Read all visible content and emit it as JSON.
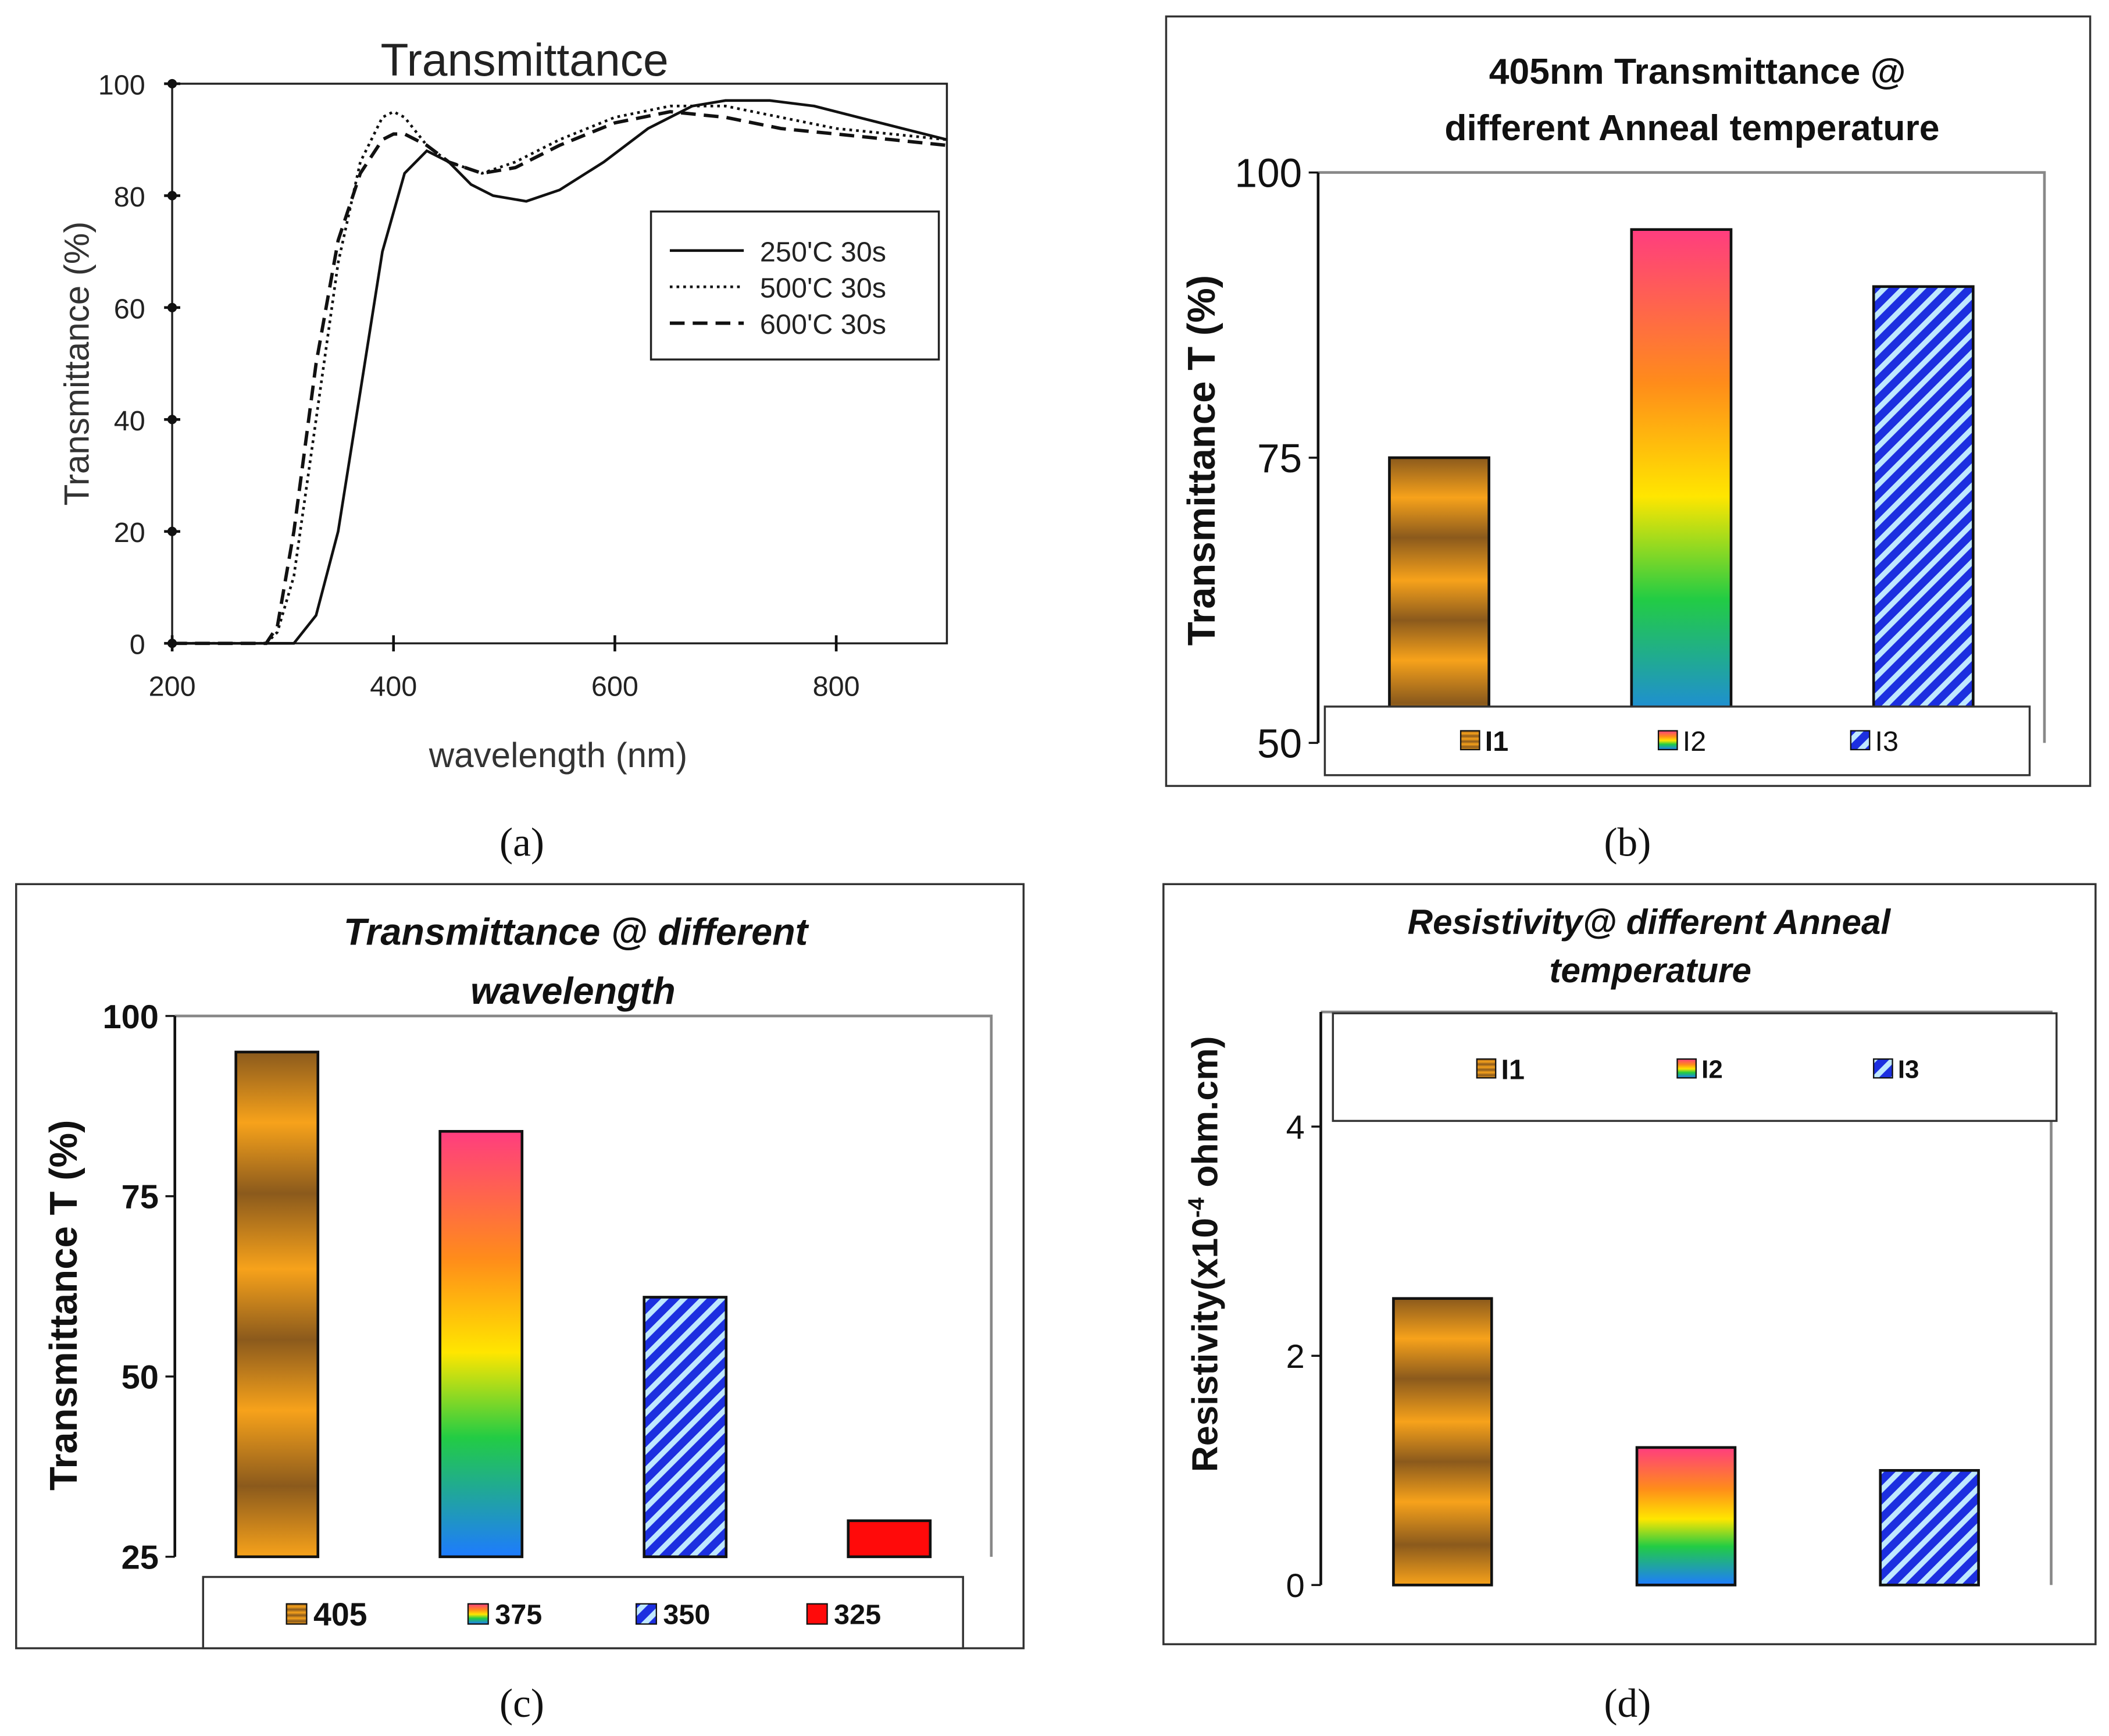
{
  "panel_labels": [
    "(a)",
    "(b)",
    "(c)",
    "(d)"
  ],
  "colors": {
    "orange": "#f7a21b",
    "orange_dark": "#8b5a1c",
    "rainbow": [
      "#ff3d7f",
      "#ff8c1a",
      "#ffe600",
      "#22cc44",
      "#1e7bff"
    ],
    "stripe_blue": "#1c2fe0",
    "stripe_light": "#bfe8ff",
    "red": "#ff0a0a"
  },
  "chart_data": [
    {
      "type": "line",
      "title": "Transmittance",
      "xlabel": "wavelength (nm)",
      "ylabel": "Transmittance (%)",
      "xlim": [
        200,
        900
      ],
      "ylim": [
        0,
        100
      ],
      "xticks": [
        "200",
        "400",
        "600",
        "800"
      ],
      "yticks": [
        "0",
        "20",
        "40",
        "60",
        "80",
        "100"
      ],
      "legend": [
        "250'C 30s",
        "500'C 30s",
        "600'C 30s"
      ],
      "series": [
        {
          "name": "250'C 30s",
          "style": "solid",
          "x": [
            200,
            300,
            310,
            330,
            350,
            370,
            390,
            410,
            430,
            450,
            470,
            490,
            520,
            550,
            590,
            630,
            670,
            700,
            740,
            780,
            820,
            860,
            900
          ],
          "y": [
            0,
            0,
            0,
            5,
            20,
            45,
            70,
            84,
            88,
            86,
            82,
            80,
            79,
            81,
            86,
            92,
            96,
            97,
            97,
            96,
            94,
            92,
            90
          ]
        },
        {
          "name": "500'C 30s",
          "style": "dotted",
          "x": [
            200,
            285,
            295,
            310,
            330,
            350,
            370,
            390,
            400,
            410,
            430,
            450,
            480,
            510,
            550,
            600,
            650,
            700,
            750,
            800,
            850,
            900
          ],
          "y": [
            0,
            0,
            2,
            12,
            40,
            68,
            86,
            94,
            95,
            94,
            89,
            86,
            84,
            86,
            90,
            94,
            96,
            96,
            94,
            92,
            91,
            90
          ]
        },
        {
          "name": "600'C 30s",
          "style": "dashed",
          "x": [
            200,
            285,
            295,
            310,
            330,
            350,
            370,
            390,
            400,
            410,
            430,
            450,
            480,
            510,
            550,
            600,
            650,
            700,
            750,
            800,
            850,
            900
          ],
          "y": [
            0,
            0,
            3,
            20,
            50,
            72,
            84,
            90,
            91,
            91,
            89,
            86,
            84,
            85,
            89,
            93,
            95,
            94,
            92,
            91,
            90,
            89
          ]
        }
      ]
    },
    {
      "type": "bar",
      "title": [
        "405nm Transmittance @",
        "different Anneal temperature"
      ],
      "ylabel": "Transmittance T (%)",
      "ylim": [
        50,
        100
      ],
      "yticks": [
        "50",
        "75",
        "100"
      ],
      "categories": [
        "I1",
        "I2",
        "I3"
      ],
      "values": [
        75,
        95,
        90
      ],
      "fills": [
        "orange",
        "rainbow",
        "stripes"
      ]
    },
    {
      "type": "bar",
      "title": [
        "Transmittance @ different",
        "wavelength"
      ],
      "ylabel": "Transmittance T (%)",
      "ylim": [
        25,
        100
      ],
      "yticks": [
        "25",
        "50",
        "75",
        "100"
      ],
      "categories": [
        "405",
        "375",
        "350",
        "325"
      ],
      "values": [
        95,
        84,
        61,
        30
      ],
      "fills": [
        "orange",
        "rainbow",
        "stripes",
        "red"
      ]
    },
    {
      "type": "bar",
      "title": [
        "Resistivity@ different Anneal",
        "temperature"
      ],
      "ylabel": "Resistivity(x10",
      "ylabel_sup": "-4",
      "ylabel_tail": " ohm.cm)",
      "ylim": [
        0,
        5
      ],
      "yticks": [
        "0",
        "2",
        "4"
      ],
      "categories": [
        "I1",
        "I2",
        "I3"
      ],
      "values": [
        2.5,
        1.2,
        1.0
      ],
      "fills": [
        "orange",
        "rainbow",
        "stripes"
      ]
    }
  ]
}
